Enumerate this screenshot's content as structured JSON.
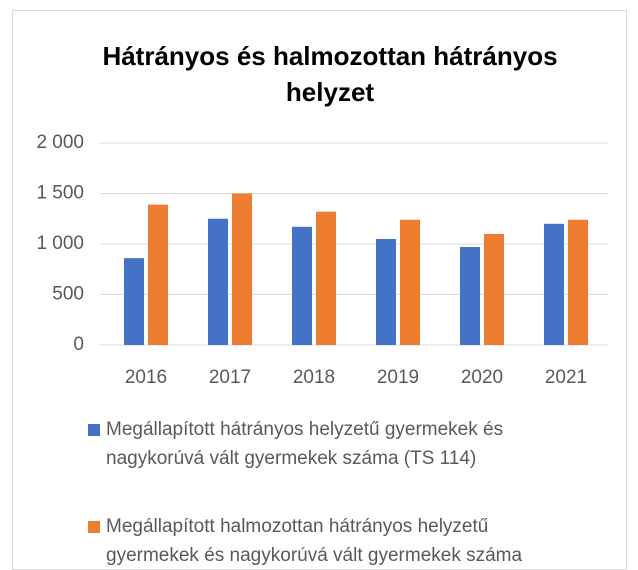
{
  "chart_data": {
    "type": "bar",
    "title": "Hátrányos és halmozottan hátrányos helyzet",
    "categories": [
      "2016",
      "2017",
      "2018",
      "2019",
      "2020",
      "2021"
    ],
    "series": [
      {
        "name": "Megállapított hátrányos helyzetű gyermekek és nagykorúvá vált gyermekek száma (TS 114)",
        "color": "#4472c4",
        "values": [
          860,
          1250,
          1170,
          1050,
          970,
          1200
        ]
      },
      {
        "name": "Megállapított halmozottan hátrányos helyzetű gyermekek és nagykorúvá vált gyermekek száma",
        "color": "#ed7d31",
        "values": [
          1390,
          1500,
          1320,
          1240,
          1100,
          1240
        ]
      }
    ],
    "ylim": [
      0,
      2000
    ],
    "yticks": [
      0,
      500,
      {
        "value": 1000,
        "label": "1 000"
      },
      {
        "value": 1500,
        "label": "1 500"
      },
      {
        "value": 2000,
        "label": "2 000"
      }
    ],
    "grid": true,
    "legend": "bottom"
  }
}
